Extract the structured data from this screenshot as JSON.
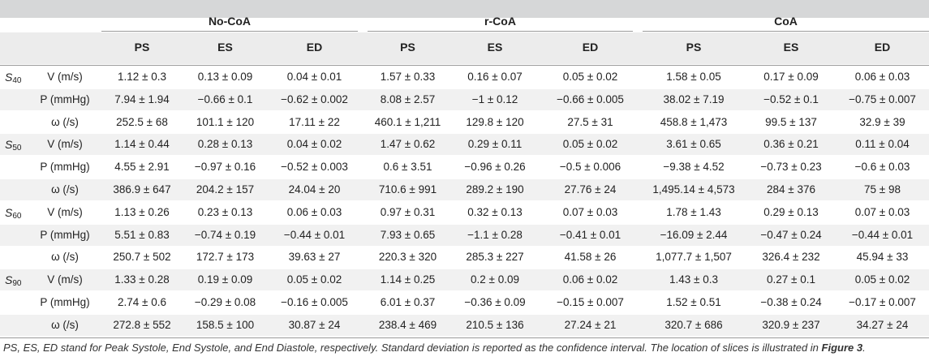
{
  "groups": [
    {
      "label": "No-CoA",
      "subcols": [
        "PS",
        "ES",
        "ED"
      ]
    },
    {
      "label": "r-CoA",
      "subcols": [
        "PS",
        "ES",
        "ED"
      ]
    },
    {
      "label": "CoA",
      "subcols": [
        "PS",
        "ES",
        "ED"
      ]
    }
  ],
  "slices": [
    {
      "slice": "S",
      "sub": "40",
      "rows": [
        {
          "metric": "V (m/s)",
          "values": [
            "1.12 ± 0.3",
            "0.13 ± 0.09",
            "0.04 ± 0.01",
            "1.57 ± 0.33",
            "0.16 ± 0.07",
            "0.05 ± 0.02",
            "1.58 ± 0.05",
            "0.17 ± 0.09",
            "0.06 ± 0.03"
          ]
        },
        {
          "metric": "P (mmHg)",
          "values": [
            "7.94 ± 1.94",
            "−0.66 ± 0.1",
            "−0.62 ± 0.002",
            "8.08 ± 2.57",
            "−1 ± 0.12",
            "−0.66 ± 0.005",
            "38.02 ± 7.19",
            "−0.52 ± 0.1",
            "−0.75 ± 0.007"
          ]
        },
        {
          "metric": "ω (/s)",
          "values": [
            "252.5 ± 68",
            "101.1 ± 120",
            "17.11 ± 22",
            "460.1 ± 1,211",
            "129.8 ± 120",
            "27.5 ± 31",
            "458.8 ± 1,473",
            "99.5 ± 137",
            "32.9 ± 39"
          ]
        }
      ]
    },
    {
      "slice": "S",
      "sub": "50",
      "rows": [
        {
          "metric": "V (m/s)",
          "values": [
            "1.14 ± 0.44",
            "0.28 ± 0.13",
            "0.04 ± 0.02",
            "1.47 ± 0.62",
            "0.29 ± 0.11",
            "0.05 ± 0.02",
            "3.61 ± 0.65",
            "0.36 ± 0.21",
            "0.11 ± 0.04"
          ]
        },
        {
          "metric": "P (mmHg)",
          "values": [
            "4.55 ± 2.91",
            "−0.97 ± 0.16",
            "−0.52 ± 0.003",
            "0.6 ± 3.51",
            "−0.96 ± 0.26",
            "−0.5 ± 0.006",
            "−9.38 ± 4.52",
            "−0.73 ± 0.23",
            "−0.6 ± 0.03"
          ]
        },
        {
          "metric": "ω (/s)",
          "values": [
            "386.9 ± 647",
            "204.2 ± 157",
            "24.04 ± 20",
            "710.6 ± 991",
            "289.2 ± 190",
            "27.76 ± 24",
            "1,495.14 ± 4,573",
            "284 ± 376",
            "75 ± 98"
          ]
        }
      ]
    },
    {
      "slice": "S",
      "sub": "60",
      "rows": [
        {
          "metric": "V (m/s)",
          "values": [
            "1.13 ± 0.26",
            "0.23 ± 0.13",
            "0.06 ± 0.03",
            "0.97 ± 0.31",
            "0.32 ± 0.13",
            "0.07 ± 0.03",
            "1.78 ± 1.43",
            "0.29 ± 0.13",
            "0.07 ± 0.03"
          ]
        },
        {
          "metric": "P (mmHg)",
          "values": [
            "5.51 ± 0.83",
            "−0.74 ± 0.19",
            "−0.44 ± 0.01",
            "7.93 ± 0.65",
            "−1.1 ± 0.28",
            "−0.41 ± 0.01",
            "−16.09 ± 2.44",
            "−0.47 ± 0.24",
            "−0.44 ± 0.01"
          ]
        },
        {
          "metric": "ω (/s)",
          "values": [
            "250.7 ± 502",
            "172.7 ± 173",
            "39.63 ± 27",
            "220.3 ± 320",
            "285.3 ± 227",
            "41.58 ± 26",
            "1,077.7 ± 1,507",
            "326.4 ± 232",
            "45.94 ± 33"
          ]
        }
      ]
    },
    {
      "slice": "S",
      "sub": "90",
      "rows": [
        {
          "metric": "V (m/s)",
          "values": [
            "1.33 ± 0.28",
            "0.19 ± 0.09",
            "0.05 ± 0.02",
            "1.14 ± 0.25",
            "0.2 ± 0.09",
            "0.06 ± 0.02",
            "1.43 ± 0.3",
            "0.27 ± 0.1",
            "0.05 ± 0.02"
          ]
        },
        {
          "metric": "P (mmHg)",
          "values": [
            "2.74 ± 0.6",
            "−0.29 ± 0.08",
            "−0.16 ± 0.005",
            "6.01 ± 0.37",
            "−0.36 ± 0.09",
            "−0.15 ± 0.007",
            "1.52 ± 0.51",
            "−0.38 ± 0.24",
            "−0.17 ± 0.007"
          ]
        },
        {
          "metric": "ω (/s)",
          "values": [
            "272.8 ± 552",
            "158.5 ± 100",
            "30.87 ± 24",
            "238.4 ± 469",
            "210.5 ± 136",
            "27.24 ± 21",
            "320.7 ± 686",
            "320.9 ± 237",
            "34.27 ± 24"
          ]
        }
      ]
    }
  ],
  "footnote": {
    "text": "PS, ES, ED stand for Peak Systole, End Systole, and End Diastole, respectively. Standard deviation is reported as the confidence interval. The location of slices is illustrated in ",
    "ref": "Figure 3",
    "end": "."
  }
}
